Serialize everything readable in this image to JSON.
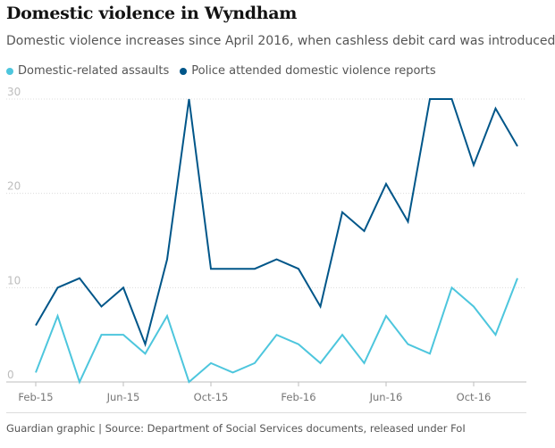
{
  "title": "Domestic violence in Wyndham",
  "subtitle": "Domestic violence increases since April 2016, when cashless debit card was introduced",
  "source": "Guardian graphic | Source: Department of Social Services documents, released under FoI",
  "colors": {
    "assaults": "#4dc6dd",
    "police": "#005689",
    "grid": "#dcdcdc",
    "axis_text": "#bdbdbd"
  },
  "chart_data": {
    "type": "line",
    "title": "Domestic violence in Wyndham",
    "xlabel": "",
    "ylabel": "",
    "x": [
      "Feb-15",
      "Mar-15",
      "Apr-15",
      "May-15",
      "Jun-15",
      "Jul-15",
      "Aug-15",
      "Sep-15",
      "Oct-15",
      "Nov-15",
      "Dec-15",
      "Jan-16",
      "Feb-16",
      "Mar-16",
      "Apr-16",
      "May-16",
      "Jun-16",
      "Jul-16",
      "Aug-16",
      "Sep-16",
      "Oct-16",
      "Nov-16",
      "Dec-16"
    ],
    "x_tick_labels": [
      {
        "index": 0,
        "label": "Feb-15"
      },
      {
        "index": 4,
        "label": "Jun-15"
      },
      {
        "index": 8,
        "label": "Oct-15"
      },
      {
        "index": 12,
        "label": "Feb-16"
      },
      {
        "index": 16,
        "label": "Jun-16"
      },
      {
        "index": 20,
        "label": "Oct-16"
      }
    ],
    "y_ticks": [
      0,
      10,
      20,
      30
    ],
    "ylim": [
      0,
      30
    ],
    "grid": true,
    "legend_position": "top-left",
    "series": [
      {
        "name": "Domestic-related assaults",
        "color_key": "assaults",
        "values": [
          1,
          7,
          0,
          5,
          5,
          3,
          7,
          0,
          2,
          1,
          2,
          5,
          4,
          2,
          5,
          2,
          7,
          4,
          3,
          10,
          8,
          5,
          11
        ]
      },
      {
        "name": "Police attended domestic violence reports",
        "color_key": "police",
        "values": [
          6,
          10,
          11,
          8,
          10,
          4,
          13,
          30,
          12,
          12,
          12,
          13,
          12,
          8,
          18,
          16,
          21,
          17,
          30,
          30,
          23,
          29,
          25
        ]
      }
    ]
  }
}
